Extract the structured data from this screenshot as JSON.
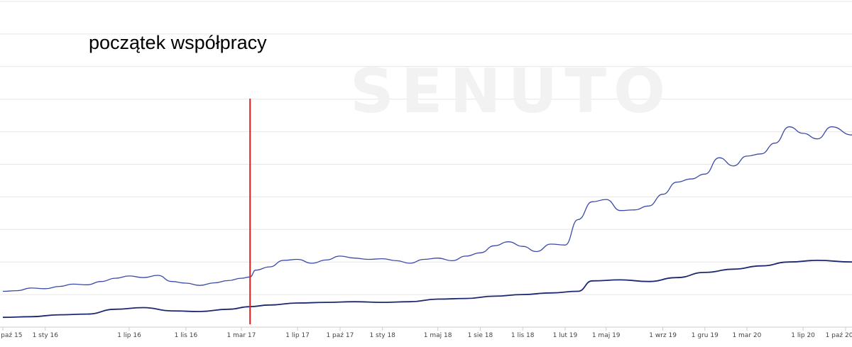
{
  "chart_data": {
    "type": "line",
    "title": "",
    "xlabel": "",
    "ylabel": "",
    "watermark": "SENUTO",
    "annotation": {
      "text": "początek współpracy",
      "x": "2017-03-20",
      "color": "#e02020"
    },
    "x_range": [
      "2015-10-01",
      "2020-10-15"
    ],
    "y_range": [
      0,
      100
    ],
    "grid": true,
    "x_ticks": [
      {
        "date": "2015-10-01",
        "label": "1 paź 15"
      },
      {
        "date": "2016-01-01",
        "label": "1 sty 16"
      },
      {
        "date": "2016-07-01",
        "label": "1 lip 16"
      },
      {
        "date": "2016-11-01",
        "label": "1 lis 16"
      },
      {
        "date": "2017-03-01",
        "label": "1 mar 17"
      },
      {
        "date": "2017-07-01",
        "label": "1 lip 17"
      },
      {
        "date": "2017-10-01",
        "label": "1 paź 17"
      },
      {
        "date": "2018-01-01",
        "label": "1 sty 18"
      },
      {
        "date": "2018-05-01",
        "label": "1 maj 18"
      },
      {
        "date": "2018-08-01",
        "label": "1 sie 18"
      },
      {
        "date": "2018-11-01",
        "label": "1 lis 18"
      },
      {
        "date": "2019-02-01",
        "label": "1 lut 19"
      },
      {
        "date": "2019-05-01",
        "label": "1 maj 19"
      },
      {
        "date": "2019-09-01",
        "label": "1 wrz 19"
      },
      {
        "date": "2019-12-01",
        "label": "1 gru 19"
      },
      {
        "date": "2020-03-01",
        "label": "1 mar 20"
      },
      {
        "date": "2020-07-01",
        "label": "1 lip 20"
      },
      {
        "date": "2020-10-01",
        "label": "1 paź 20"
      }
    ],
    "series": [
      {
        "color": "#3a4aa8",
        "width": 1.3,
        "points": [
          [
            "2015-10-01",
            11.0
          ],
          [
            "2015-11-01",
            11.2
          ],
          [
            "2015-12-01",
            12.0
          ],
          [
            "2016-01-01",
            11.8
          ],
          [
            "2016-02-01",
            12.5
          ],
          [
            "2016-03-01",
            13.2
          ],
          [
            "2016-04-01",
            13.0
          ],
          [
            "2016-05-01",
            14.0
          ],
          [
            "2016-06-01",
            15.0
          ],
          [
            "2016-07-01",
            15.7
          ],
          [
            "2016-08-01",
            15.2
          ],
          [
            "2016-09-01",
            15.9
          ],
          [
            "2016-10-01",
            14.0
          ],
          [
            "2016-11-01",
            13.5
          ],
          [
            "2016-12-01",
            12.8
          ],
          [
            "2017-01-01",
            13.6
          ],
          [
            "2017-02-01",
            14.3
          ],
          [
            "2017-03-01",
            15.0
          ],
          [
            "2017-03-20",
            15.4
          ],
          [
            "2017-04-01",
            17.5
          ],
          [
            "2017-05-01",
            18.5
          ],
          [
            "2017-06-01",
            20.5
          ],
          [
            "2017-07-01",
            20.8
          ],
          [
            "2017-08-01",
            19.6
          ],
          [
            "2017-09-01",
            20.6
          ],
          [
            "2017-10-01",
            21.8
          ],
          [
            "2017-11-01",
            21.2
          ],
          [
            "2017-12-01",
            20.8
          ],
          [
            "2018-01-01",
            21.0
          ],
          [
            "2018-02-01",
            20.4
          ],
          [
            "2018-03-01",
            19.6
          ],
          [
            "2018-04-01",
            20.8
          ],
          [
            "2018-05-01",
            21.2
          ],
          [
            "2018-06-01",
            20.4
          ],
          [
            "2018-07-01",
            21.8
          ],
          [
            "2018-08-01",
            22.8
          ],
          [
            "2018-09-01",
            25.0
          ],
          [
            "2018-10-01",
            26.2
          ],
          [
            "2018-11-01",
            24.8
          ],
          [
            "2018-12-01",
            23.2
          ],
          [
            "2019-01-01",
            25.5
          ],
          [
            "2019-02-01",
            25.2
          ],
          [
            "2019-03-01",
            33.0
          ],
          [
            "2019-04-01",
            38.5
          ],
          [
            "2019-05-01",
            39.2
          ],
          [
            "2019-06-01",
            35.8
          ],
          [
            "2019-07-01",
            36.0
          ],
          [
            "2019-08-01",
            37.2
          ],
          [
            "2019-09-01",
            40.8
          ],
          [
            "2019-10-01",
            44.5
          ],
          [
            "2019-11-01",
            45.5
          ],
          [
            "2019-12-01",
            47.0
          ],
          [
            "2020-01-01",
            52.0
          ],
          [
            "2020-02-01",
            49.5
          ],
          [
            "2020-03-01",
            52.5
          ],
          [
            "2020-04-01",
            53.2
          ],
          [
            "2020-05-01",
            56.5
          ],
          [
            "2020-06-01",
            61.5
          ],
          [
            "2020-07-01",
            59.5
          ],
          [
            "2020-08-01",
            57.8
          ],
          [
            "2020-09-01",
            61.5
          ],
          [
            "2020-10-15",
            59.0
          ]
        ]
      },
      {
        "color": "#1c2870",
        "width": 1.8,
        "points": [
          [
            "2015-10-01",
            3.0
          ],
          [
            "2015-12-01",
            3.2
          ],
          [
            "2016-02-01",
            3.8
          ],
          [
            "2016-04-01",
            4.0
          ],
          [
            "2016-06-01",
            5.5
          ],
          [
            "2016-08-01",
            6.0
          ],
          [
            "2016-10-01",
            5.0
          ],
          [
            "2016-12-01",
            4.8
          ],
          [
            "2017-02-01",
            5.5
          ],
          [
            "2017-03-20",
            6.3
          ],
          [
            "2017-05-01",
            6.8
          ],
          [
            "2017-07-01",
            7.4
          ],
          [
            "2017-09-01",
            7.6
          ],
          [
            "2017-11-01",
            7.8
          ],
          [
            "2018-01-01",
            7.6
          ],
          [
            "2018-03-01",
            7.8
          ],
          [
            "2018-05-01",
            8.6
          ],
          [
            "2018-07-01",
            8.8
          ],
          [
            "2018-09-01",
            9.5
          ],
          [
            "2018-11-01",
            10.0
          ],
          [
            "2019-01-01",
            10.5
          ],
          [
            "2019-03-01",
            11.0
          ],
          [
            "2019-04-01",
            14.2
          ],
          [
            "2019-06-01",
            14.5
          ],
          [
            "2019-08-01",
            14.0
          ],
          [
            "2019-10-01",
            15.2
          ],
          [
            "2019-12-01",
            16.8
          ],
          [
            "2020-02-01",
            17.8
          ],
          [
            "2020-04-01",
            18.8
          ],
          [
            "2020-06-01",
            20.0
          ],
          [
            "2020-08-01",
            20.5
          ],
          [
            "2020-10-15",
            20.0
          ]
        ]
      }
    ]
  }
}
